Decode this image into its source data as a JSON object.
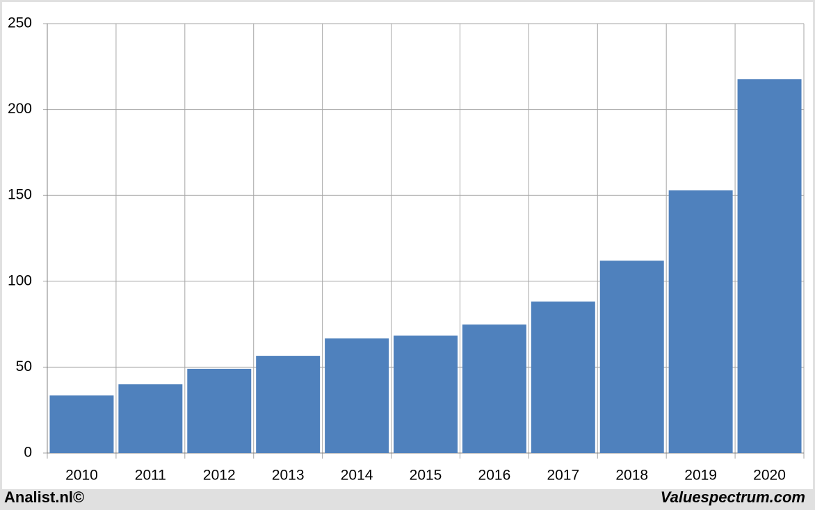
{
  "chart_data": {
    "type": "bar",
    "categories": [
      "2010",
      "2011",
      "2012",
      "2013",
      "2014",
      "2015",
      "2016",
      "2017",
      "2018",
      "2019",
      "2020"
    ],
    "values": [
      33.5,
      40,
      49,
      56.6,
      66.7,
      68.4,
      74.8,
      88.2,
      112,
      152.9,
      217.6
    ],
    "color": "#4f81bd",
    "ylim": [
      0,
      250
    ],
    "yticks": [
      0,
      50,
      100,
      150,
      200,
      250
    ],
    "grid": true
  },
  "credits": {
    "left": "Analist.nl©",
    "right": "Valuespectrum.com"
  }
}
